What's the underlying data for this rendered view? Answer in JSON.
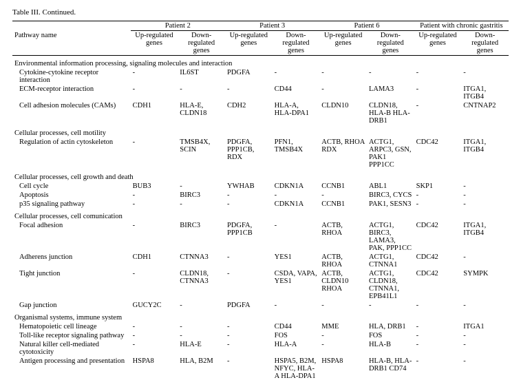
{
  "title": "Table III. Continued.",
  "group_headers": [
    "Patient 2",
    "Patient 3",
    "Patient 6",
    "Patient with chronic gastritis"
  ],
  "sub_headers": {
    "pathway": "Pathway name",
    "up": "Up-regulated genes",
    "down": "Down-regulated genes"
  },
  "sections": [
    {
      "heading": "Environmental information processing, signaling molecules and interaction",
      "rows": [
        {
          "name": "Cytokine-cytokine receptor interaction",
          "p2u": "-",
          "p2d": "IL6ST",
          "p3u": "PDGFA",
          "p3d": "-",
          "p6u": "-",
          "p6d": "-",
          "pcu": "-",
          "pcd": "-"
        },
        {
          "name": "ECM-receptor interaction",
          "p2u": "-",
          "p2d": "-",
          "p3u": "-",
          "p3d": "CD44",
          "p6u": "-",
          "p6d": "LAMA3",
          "pcu": "-",
          "pcd": "ITGA1, ITGB4"
        },
        {
          "name": "Cell adhesion molecules (CAMs)",
          "p2u": "CDH1",
          "p2d": "HLA-E, CLDN18",
          "p3u": "CDH2",
          "p3d": "HLA-A, HLA-DPA1",
          "p6u": "CLDN10",
          "p6d": "CLDN18, HLA-B HLA-DRB1",
          "pcu": "-",
          "pcd": "CNTNAP2"
        }
      ]
    },
    {
      "heading": "Cellular processes, cell motility",
      "rows": [
        {
          "name": "Regulation of actin cytoskeleton",
          "p2u": "-",
          "p2d": "TMSB4X, SCIN",
          "p3u": "PDGFA, PPP1CB, RDX",
          "p3d": "PFN1, TMSB4X",
          "p6u": "ACTB, RHOA RDX",
          "p6d": "ACTG1, ARPC3, GSN, PAK1 PPP1CC",
          "pcu": "CDC42",
          "pcd": "ITGA1, ITGB4"
        }
      ]
    },
    {
      "heading": "Cellular processes, cell growth and death",
      "rows": [
        {
          "name": "Cell cycle",
          "p2u": "BUB3",
          "p2d": "-",
          "p3u": "YWHAB",
          "p3d": "CDKN1A",
          "p6u": "CCNB1",
          "p6d": "ABL1",
          "pcu": "SKP1",
          "pcd": "-"
        },
        {
          "name": "Apoptosis",
          "p2u": "-",
          "p2d": "BIRC3",
          "p3u": "-",
          "p3d": "-",
          "p6u": "-",
          "p6d": "BIRC3, CYCS",
          "pcu": "-",
          "pcd": "-"
        },
        {
          "name": "p35 signaling pathway",
          "p2u": "-",
          "p2d": "-",
          "p3u": "-",
          "p3d": "CDKN1A",
          "p6u": "CCNB1",
          "p6d": "PAK1, SESN3",
          "pcu": "-",
          "pcd": "-"
        }
      ]
    },
    {
      "heading": "Cellular processes, cell comunication",
      "rows": [
        {
          "name": "Focal adhesion",
          "p2u": "-",
          "p2d": "BIRC3",
          "p3u": "PDGFA, PPP1CB",
          "p3d": "-",
          "p6u": "ACTB, RHOA",
          "p6d": "ACTG1, BIRC3, LAMA3, PAK, PPP1CC",
          "pcu": "CDC42",
          "pcd": "ITGA1, ITGB4"
        },
        {
          "name": "Adherens junction",
          "p2u": "CDH1",
          "p2d": "CTNNA3",
          "p3u": "-",
          "p3d": "YES1",
          "p6u": "ACTB, RHOA",
          "p6d": "ACTG1, CTNNA1",
          "pcu": "CDC42",
          "pcd": "-"
        },
        {
          "name": "Tight junction",
          "p2u": "-",
          "p2d": "CLDN18, CTNNA3",
          "p3u": "-",
          "p3d": "CSDA, VAPA, YES1",
          "p6u": "ACTB, CLDN10 RHOA",
          "p6d": "ACTG1, CLDN18, CTNNA1, EPB41L1",
          "pcu": "CDC42",
          "pcd": "SYMPK"
        },
        {
          "name": "Gap junction",
          "p2u": "GUCY2C",
          "p2d": "-",
          "p3u": "PDGFA",
          "p3d": "-",
          "p6u": "-",
          "p6d": "-",
          "pcu": "-",
          "pcd": "-"
        }
      ]
    },
    {
      "heading": "Organismal systems, immune system",
      "rows": [
        {
          "name": "Hematopoietic cell lineage",
          "p2u": "-",
          "p2d": "-",
          "p3u": "-",
          "p3d": "CD44",
          "p6u": "MME",
          "p6d": "HLA, DRB1",
          "pcu": "-",
          "pcd": "ITGA1"
        },
        {
          "name": "Toll-like receptor signaling pathway",
          "p2u": "-",
          "p2d": "-",
          "p3u": "-",
          "p3d": "FOS",
          "p6u": "-",
          "p6d": "FOS",
          "pcu": "-",
          "pcd": "-"
        },
        {
          "name": "Natural killer cell-mediated cytotoxicity",
          "p2u": "-",
          "p2d": "HLA-E",
          "p3u": "-",
          "p3d": "HLA-A",
          "p6u": "-",
          "p6d": "HLA-B",
          "pcu": "-",
          "pcd": "-"
        },
        {
          "name": "Antigen processing and presentation",
          "p2u": "HSPA8",
          "p2d": "HLA, B2M",
          "p3u": "-",
          "p3d": "HSPA5, B2M, NFYC, HLA-A HLA-DPA1",
          "p6u": "HSPA8",
          "p6d": "HLA-B, HLA-DRB1 CD74",
          "pcu": "-",
          "pcd": "-"
        }
      ]
    }
  ]
}
